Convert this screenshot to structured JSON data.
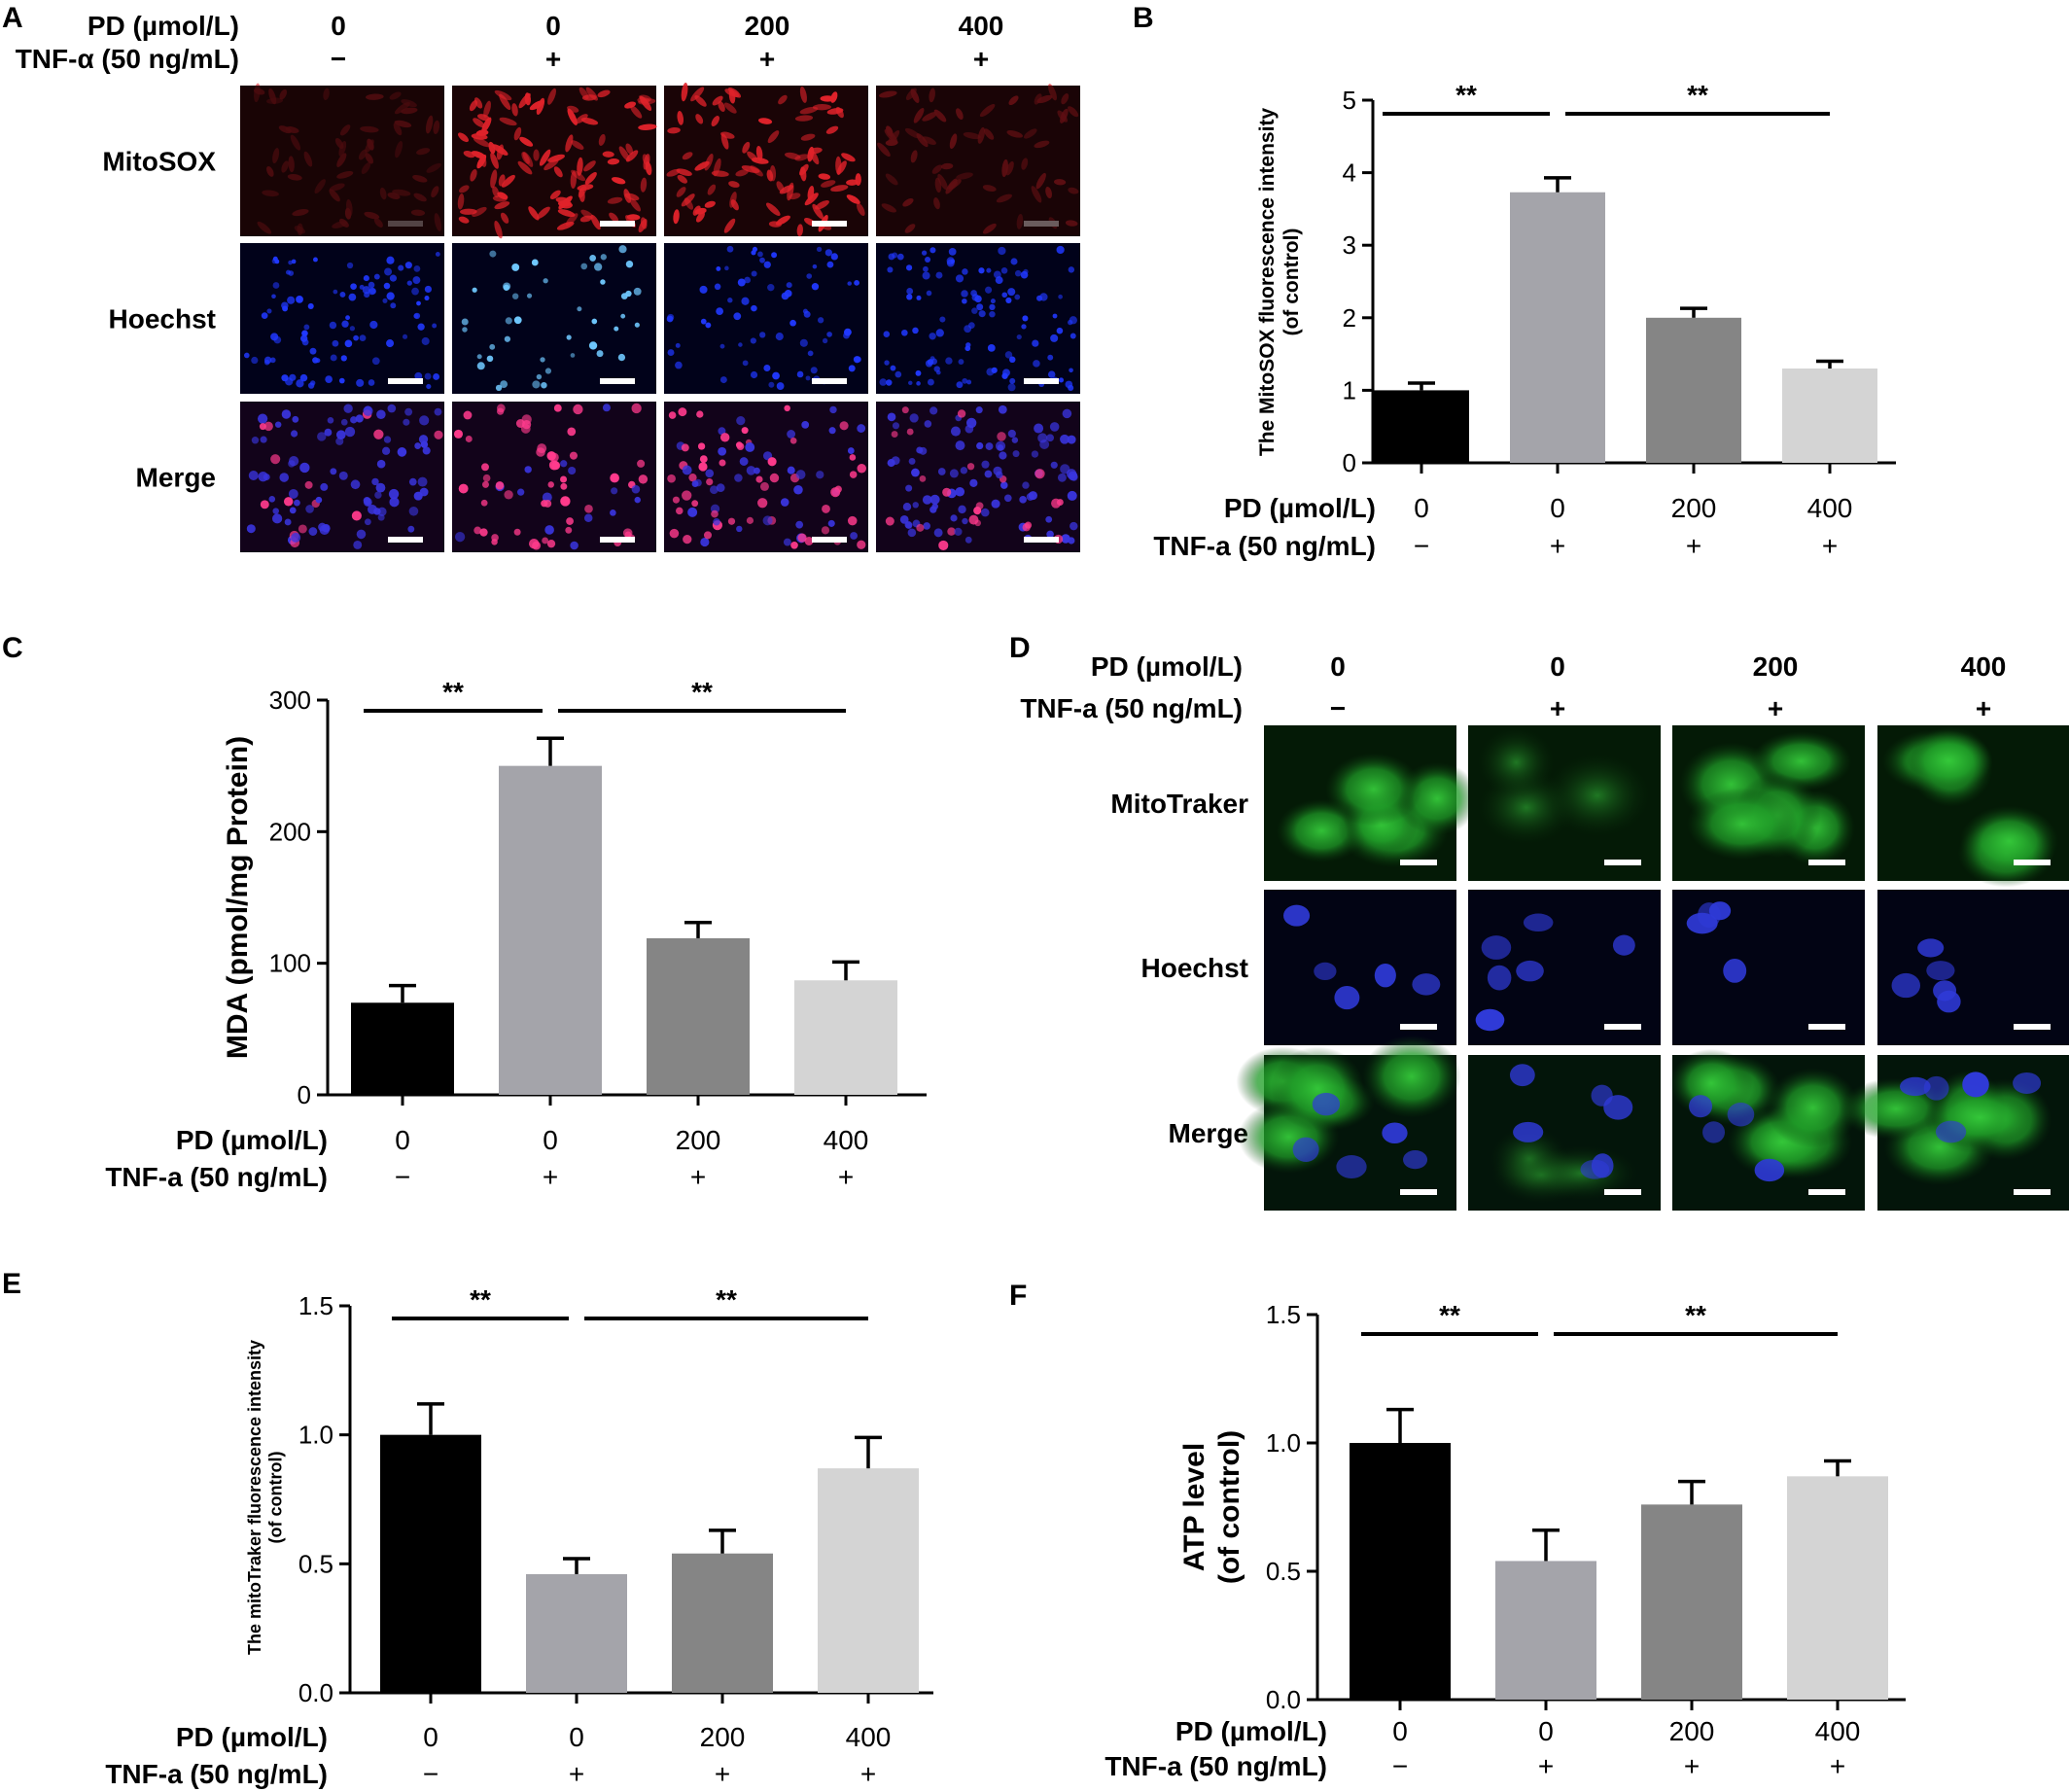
{
  "microscopy": [
    {
      "panel": "A",
      "header_labels": [
        "PD (µmol/L)",
        "TNF-α (50 ng/mL)"
      ],
      "pd_values": [
        "0",
        "0",
        "200",
        "400"
      ],
      "tnf_values": [
        "−",
        "+",
        "+",
        "+"
      ],
      "rows": [
        "MitoSOX",
        "Hoechst",
        "Merge"
      ]
    },
    {
      "panel": "D",
      "header_labels": [
        "PD (µmol/L)",
        "TNF-a (50 ng/mL)"
      ],
      "pd_values": [
        "0",
        "0",
        "200",
        "400"
      ],
      "tnf_values": [
        "−",
        "+",
        "+",
        "+"
      ],
      "rows": [
        "MitoTraker",
        "Hoechst",
        "Merge"
      ]
    }
  ],
  "chart_data": [
    {
      "panel": "B",
      "type": "bar",
      "ylabel": "The MitoSOX fluorescence intensity (of control)",
      "ylim": [
        0,
        5
      ],
      "yticks": [
        "0",
        "1",
        "2",
        "3",
        "4",
        "5"
      ],
      "row_labels": [
        "PD (µmol/L)",
        "TNF-a (50 ng/mL)"
      ],
      "categories_pd": [
        "0",
        "0",
        "200",
        "400"
      ],
      "categories_tnf": [
        "−",
        "+",
        "+",
        "+"
      ],
      "values": [
        1.0,
        3.73,
        2.0,
        1.3
      ],
      "errors": [
        0.1,
        0.2,
        0.13,
        0.1
      ],
      "colors": [
        "#000000",
        "#a4a4aa",
        "#858585",
        "#d4d4d4"
      ],
      "significance": [
        {
          "from": 0,
          "to": 1,
          "label": "**"
        },
        {
          "from": 1,
          "to": 3,
          "label": "**"
        }
      ]
    },
    {
      "panel": "C",
      "type": "bar",
      "ylabel": "MDA (pmol/mg Protein)",
      "ylim": [
        0,
        300
      ],
      "yticks": [
        "0",
        "100",
        "200",
        "300"
      ],
      "row_labels": [
        "PD (µmol/L)",
        "TNF-a (50 ng/mL)"
      ],
      "categories_pd": [
        "0",
        "0",
        "200",
        "400"
      ],
      "categories_tnf": [
        "−",
        "+",
        "+",
        "+"
      ],
      "values": [
        70,
        250,
        119,
        87
      ],
      "errors": [
        13,
        21,
        12,
        14
      ],
      "colors": [
        "#000000",
        "#a4a4aa",
        "#858585",
        "#d4d4d4"
      ],
      "significance": [
        {
          "from": 0,
          "to": 1,
          "label": "**"
        },
        {
          "from": 1,
          "to": 3,
          "label": "**"
        }
      ]
    },
    {
      "panel": "E",
      "type": "bar",
      "ylabel": "The mitoTraker fluorescence intensity (of control)",
      "ylim": [
        0,
        1.5
      ],
      "yticks": [
        "0.0",
        "0.5",
        "1.0",
        "1.5"
      ],
      "row_labels": [
        "PD (µmol/L)",
        "TNF-a (50 ng/mL)"
      ],
      "categories_pd": [
        "0",
        "0",
        "200",
        "400"
      ],
      "categories_tnf": [
        "−",
        "+",
        "+",
        "+"
      ],
      "values": [
        1.0,
        0.46,
        0.54,
        0.87
      ],
      "errors": [
        0.12,
        0.06,
        0.09,
        0.12
      ],
      "colors": [
        "#000000",
        "#a4a4aa",
        "#858585",
        "#d4d4d4"
      ],
      "significance": [
        {
          "from": 0,
          "to": 1,
          "label": "**"
        },
        {
          "from": 1,
          "to": 3,
          "label": "**"
        }
      ]
    },
    {
      "panel": "F",
      "type": "bar",
      "ylabel": "ATP level (of control)",
      "ylim": [
        0,
        1.5
      ],
      "yticks": [
        "0.0",
        "0.5",
        "1.0",
        "1.5"
      ],
      "row_labels": [
        "PD (µmol/L)",
        "TNF-a (50 ng/mL)"
      ],
      "categories_pd": [
        "0",
        "0",
        "200",
        "400"
      ],
      "categories_tnf": [
        "−",
        "+",
        "+",
        "+"
      ],
      "values": [
        1.0,
        0.54,
        0.76,
        0.87
      ],
      "errors": [
        0.13,
        0.12,
        0.09,
        0.06
      ],
      "colors": [
        "#000000",
        "#a4a4aa",
        "#858585",
        "#d4d4d4"
      ],
      "significance": [
        {
          "from": 0,
          "to": 1,
          "label": "**"
        },
        {
          "from": 1,
          "to": 3,
          "label": "**"
        }
      ]
    }
  ],
  "image_colors": {
    "mitosox": "#e0222a",
    "hoechst": "#2038ff",
    "merge_red": "#ff3a8c",
    "mitotracker": "#35c93a",
    "hoechst_dim": "#2f3ad8"
  }
}
